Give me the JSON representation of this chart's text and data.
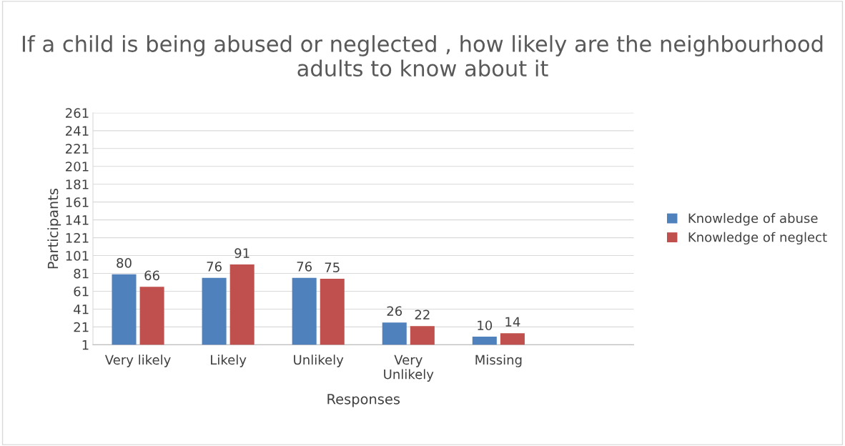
{
  "chart_data": {
    "type": "bar",
    "title": "If a child is being abused or neglected , how likely are the neighbourhood adults to know about it",
    "xlabel": "Responses",
    "ylabel": "Participants",
    "categories": [
      "Very likely",
      "Likely",
      "Unlikely",
      "Very\nUnlikely",
      "Missing",
      null
    ],
    "series": [
      {
        "name": "Knowledge of abuse",
        "color": "#4f81bd",
        "values": [
          80,
          76,
          76,
          26,
          10,
          null
        ]
      },
      {
        "name": "Knowledge of neglect",
        "color": "#c0504d",
        "values": [
          66,
          91,
          75,
          22,
          14,
          null
        ]
      }
    ],
    "ylim": [
      1,
      261
    ],
    "yticks": [
      1,
      21,
      41,
      61,
      81,
      101,
      121,
      141,
      161,
      181,
      201,
      221,
      241,
      261
    ],
    "grid": "y",
    "legend": "right",
    "data_labels": true
  }
}
